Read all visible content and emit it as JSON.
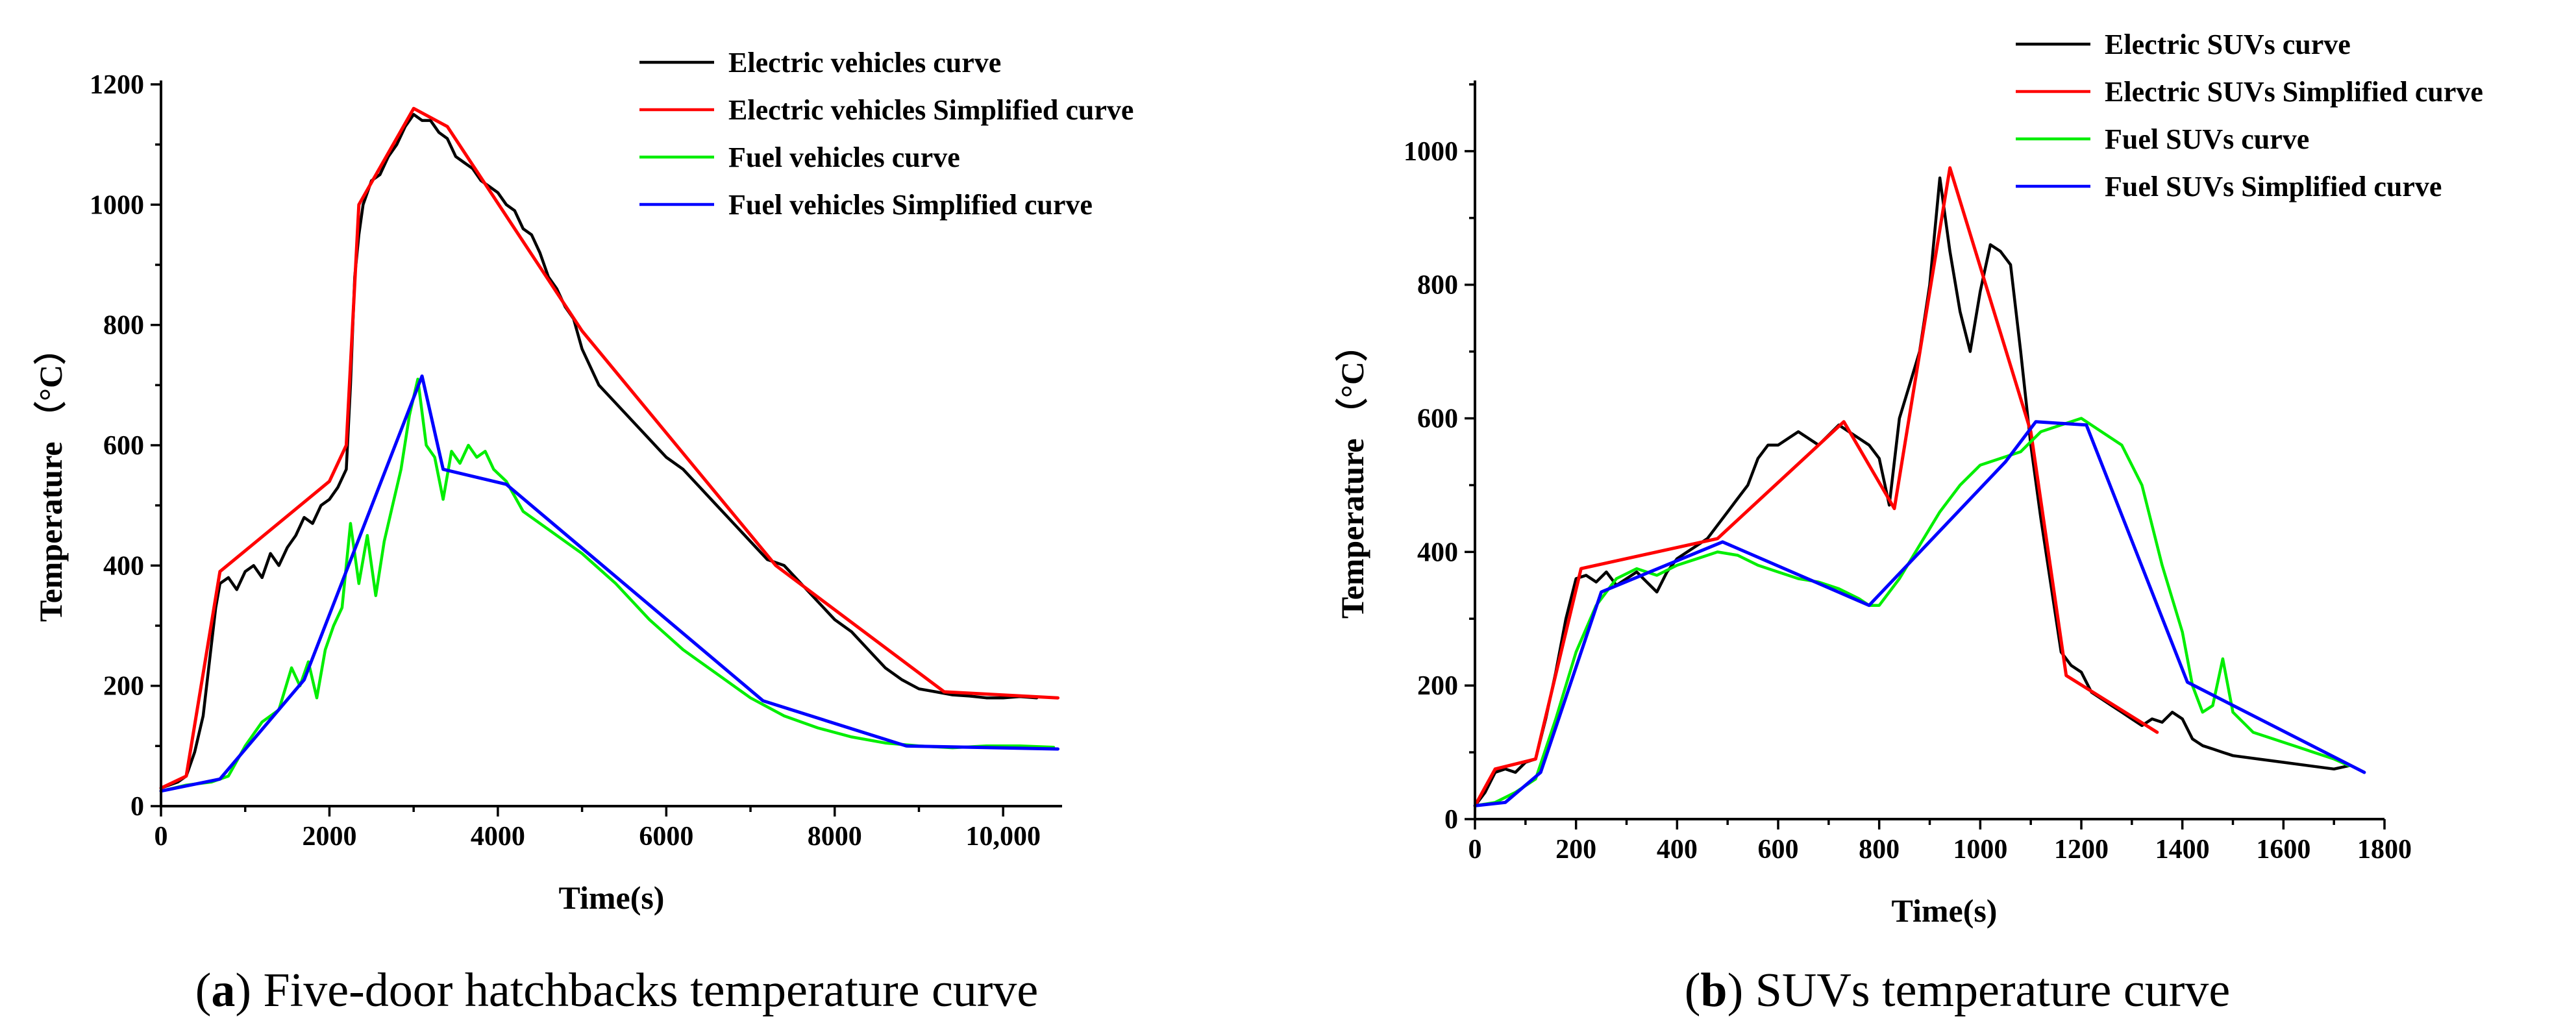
{
  "chart_data": [
    {
      "type": "line",
      "title": "",
      "caption_letter": "a",
      "caption_text": " Five-door hatchbacks temperature curve",
      "xlabel": "Time(s)",
      "ylabel": "Temperature （°C）",
      "xlim": [
        0,
        10700
      ],
      "ylim": [
        0,
        1200
      ],
      "x_ticks": [
        0,
        2000,
        4000,
        6000,
        8000,
        10000
      ],
      "x_tick_labels": [
        "0",
        "2000",
        "4000",
        "6000",
        "8000",
        "10,000"
      ],
      "y_ticks": [
        0,
        200,
        400,
        600,
        800,
        1000,
        1200
      ],
      "y_tick_labels": [
        "0",
        "200",
        "400",
        "600",
        "800",
        "1000",
        "1200"
      ],
      "legend_position": "top-right",
      "series": [
        {
          "name": "Electric vehicles curve",
          "color": "#000000",
          "x": [
            0,
            200,
            300,
            400,
            500,
            600,
            650,
            700,
            800,
            900,
            1000,
            1100,
            1200,
            1300,
            1400,
            1500,
            1600,
            1700,
            1800,
            1900,
            2000,
            2100,
            2200,
            2250,
            2300,
            2350,
            2400,
            2500,
            2600,
            2700,
            2800,
            2900,
            3000,
            3100,
            3200,
            3300,
            3400,
            3500,
            3600,
            3700,
            3800,
            3900,
            4000,
            4100,
            4200,
            4300,
            4400,
            4500,
            4600,
            4700,
            4800,
            4900,
            5000,
            5200,
            5400,
            5600,
            5800,
            6000,
            6200,
            6400,
            6600,
            6800,
            7000,
            7200,
            7400,
            7600,
            7800,
            8000,
            8200,
            8400,
            8600,
            8800,
            9000,
            9200,
            9400,
            9600,
            9800,
            10000,
            10200,
            10400
          ],
          "y": [
            30,
            40,
            50,
            90,
            150,
            270,
            330,
            370,
            380,
            360,
            390,
            400,
            380,
            420,
            400,
            430,
            450,
            480,
            470,
            500,
            510,
            530,
            560,
            700,
            880,
            950,
            1000,
            1040,
            1050,
            1080,
            1100,
            1130,
            1150,
            1140,
            1140,
            1120,
            1110,
            1080,
            1070,
            1060,
            1040,
            1030,
            1020,
            1000,
            990,
            960,
            950,
            920,
            880,
            860,
            830,
            810,
            760,
            700,
            670,
            640,
            610,
            580,
            560,
            530,
            500,
            470,
            440,
            410,
            400,
            370,
            340,
            310,
            290,
            260,
            230,
            210,
            195,
            190,
            185,
            183,
            180,
            180,
            182,
            180
          ]
        },
        {
          "name": "Electric vehicles Simplified curve",
          "color": "#ff0000",
          "x": [
            0,
            300,
            700,
            2000,
            2200,
            2350,
            3000,
            3400,
            5000,
            7300,
            9300,
            10650
          ],
          "y": [
            30,
            50,
            390,
            540,
            600,
            1000,
            1160,
            1130,
            790,
            400,
            190,
            180
          ]
        },
        {
          "name": "Fuel vehicles curve",
          "color": "#00ee00",
          "x": [
            0,
            300,
            600,
            800,
            1000,
            1200,
            1400,
            1550,
            1650,
            1750,
            1850,
            1950,
            2050,
            2150,
            2250,
            2350,
            2450,
            2550,
            2650,
            2750,
            2850,
            2950,
            3050,
            3150,
            3250,
            3350,
            3450,
            3550,
            3650,
            3750,
            3850,
            3950,
            4100,
            4300,
            4600,
            5000,
            5400,
            5800,
            6200,
            6600,
            7000,
            7400,
            7800,
            8200,
            8600,
            9000,
            9400,
            9800,
            10200,
            10600
          ],
          "y": [
            25,
            35,
            40,
            50,
            100,
            140,
            160,
            230,
            200,
            240,
            180,
            260,
            300,
            330,
            470,
            370,
            450,
            350,
            440,
            500,
            560,
            650,
            710,
            600,
            580,
            510,
            590,
            570,
            600,
            580,
            590,
            560,
            540,
            490,
            460,
            420,
            370,
            310,
            260,
            220,
            180,
            150,
            130,
            115,
            105,
            100,
            97,
            100,
            100,
            98
          ]
        },
        {
          "name": "Fuel vehicles Simplified curve",
          "color": "#0000ff",
          "x": [
            0,
            700,
            1700,
            3100,
            3350,
            4100,
            7150,
            8850,
            10650
          ],
          "y": [
            25,
            45,
            210,
            715,
            560,
            535,
            175,
            100,
            95
          ]
        }
      ]
    },
    {
      "type": "line",
      "title": "",
      "caption_letter": "b",
      "caption_text": " SUVs temperature curve",
      "xlabel": "Time(s)",
      "ylabel": "Temperature （°C）",
      "xlim": [
        0,
        1800
      ],
      "ylim": [
        0,
        1100
      ],
      "x_ticks": [
        0,
        200,
        400,
        600,
        800,
        1000,
        1200,
        1400,
        1600,
        1800
      ],
      "x_tick_labels": [
        "0",
        "200",
        "400",
        "600",
        "800",
        "1000",
        "1200",
        "1400",
        "1600",
        "1800"
      ],
      "y_ticks": [
        0,
        200,
        400,
        600,
        800,
        1000
      ],
      "y_tick_labels": [
        "0",
        "200",
        "400",
        "600",
        "800",
        "1000"
      ],
      "legend_position": "top-right",
      "series": [
        {
          "name": "Electric SUVs curve",
          "color": "#000000",
          "x": [
            0,
            20,
            40,
            60,
            80,
            100,
            120,
            140,
            160,
            180,
            200,
            220,
            240,
            260,
            280,
            300,
            320,
            340,
            360,
            380,
            400,
            420,
            440,
            460,
            480,
            500,
            520,
            540,
            560,
            580,
            600,
            620,
            640,
            660,
            680,
            700,
            720,
            740,
            760,
            780,
            800,
            820,
            840,
            860,
            880,
            900,
            920,
            940,
            960,
            980,
            1000,
            1020,
            1040,
            1060,
            1080,
            1100,
            1120,
            1140,
            1160,
            1180,
            1200,
            1220,
            1240,
            1260,
            1280,
            1300,
            1320,
            1340,
            1360,
            1380,
            1400,
            1420,
            1440,
            1460,
            1480,
            1500,
            1550,
            1600,
            1650,
            1700,
            1730
          ],
          "y": [
            20,
            40,
            70,
            75,
            70,
            85,
            90,
            150,
            220,
            300,
            360,
            365,
            355,
            370,
            350,
            360,
            370,
            355,
            340,
            370,
            390,
            400,
            410,
            420,
            440,
            460,
            480,
            500,
            540,
            560,
            560,
            570,
            580,
            570,
            560,
            575,
            590,
            580,
            570,
            560,
            540,
            470,
            600,
            650,
            700,
            800,
            960,
            850,
            760,
            700,
            790,
            860,
            850,
            830,
            700,
            560,
            450,
            350,
            250,
            230,
            220,
            190,
            180,
            170,
            160,
            150,
            140,
            150,
            145,
            160,
            150,
            120,
            110,
            105,
            100,
            95,
            90,
            85,
            80,
            75,
            80
          ]
        },
        {
          "name": "Electric SUVs Simplified curve",
          "color": "#ff0000",
          "x": [
            0,
            40,
            120,
            210,
            480,
            730,
            830,
            940,
            1100,
            1170,
            1350
          ],
          "y": [
            20,
            75,
            90,
            375,
            420,
            595,
            465,
            975,
            580,
            215,
            130
          ]
        },
        {
          "name": "Fuel SUVs curve",
          "color": "#00ee00",
          "x": [
            0,
            40,
            80,
            120,
            160,
            200,
            240,
            280,
            320,
            360,
            400,
            440,
            480,
            520,
            560,
            600,
            640,
            680,
            720,
            760,
            780,
            800,
            840,
            880,
            920,
            960,
            1000,
            1040,
            1080,
            1120,
            1160,
            1200,
            1240,
            1280,
            1320,
            1360,
            1400,
            1420,
            1440,
            1460,
            1480,
            1500,
            1540,
            1580,
            1620,
            1660,
            1700,
            1730
          ],
          "y": [
            20,
            25,
            40,
            60,
            150,
            250,
            320,
            360,
            375,
            365,
            380,
            390,
            400,
            395,
            380,
            370,
            360,
            355,
            345,
            330,
            320,
            320,
            360,
            410,
            460,
            500,
            530,
            540,
            550,
            580,
            590,
            600,
            580,
            560,
            500,
            380,
            280,
            200,
            160,
            170,
            240,
            160,
            130,
            120,
            110,
            100,
            90,
            80
          ]
        },
        {
          "name": "Fuel SUVs Simplified curve",
          "color": "#0000ff",
          "x": [
            0,
            60,
            130,
            250,
            490,
            780,
            1050,
            1110,
            1210,
            1410,
            1760
          ],
          "y": [
            20,
            25,
            70,
            340,
            415,
            320,
            535,
            595,
            590,
            205,
            70
          ]
        }
      ]
    }
  ]
}
